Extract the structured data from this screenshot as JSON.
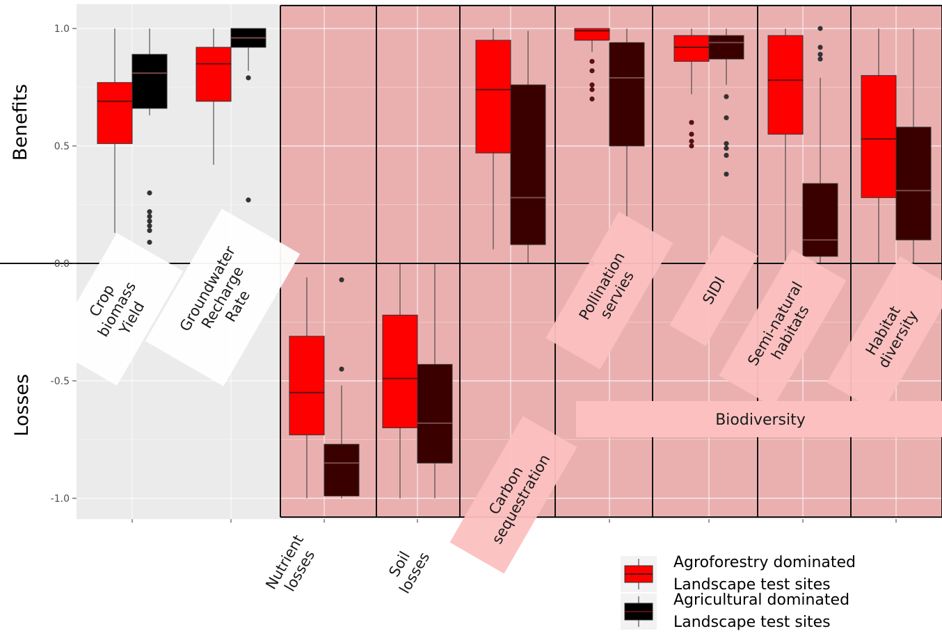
{
  "chart_data": {
    "type": "box",
    "xlabel": "",
    "ylabel_top": "Benefits",
    "ylabel_bottom": "Losses",
    "ylim": [
      -1.1,
      1.1
    ],
    "yticks": [
      -1.0,
      -0.5,
      0.0,
      0.5,
      1.0
    ],
    "ytick_labels": [
      "-1.0",
      "-0.5",
      "0.0",
      "0.5",
      "1.0"
    ],
    "grid": true,
    "highlight_color": "#eab0b0",
    "background_color": "#ebebeb",
    "group_label": "Biodiversity",
    "categories": [
      "Crop biomass Yield",
      "Groundwater Recharge Rate",
      "Nutrient losses",
      "Soil losses",
      "Carbon sequestration",
      "Pollination servies",
      "SIDI",
      "Semi-natural habitats",
      "Habitat diversity"
    ],
    "series": [
      {
        "name": "Agroforestry dominated Landscape test sites",
        "color": "#ff0000",
        "boxes": [
          {
            "min": 0.13,
            "q1": 0.51,
            "median": 0.69,
            "q3": 0.77,
            "max": 1.0,
            "outliers": []
          },
          {
            "min": 0.42,
            "q1": 0.69,
            "median": 0.85,
            "q3": 0.92,
            "max": 1.0,
            "outliers": []
          },
          {
            "min": -1.0,
            "q1": -0.73,
            "median": -0.55,
            "q3": -0.31,
            "max": -0.06,
            "outliers": []
          },
          {
            "min": -1.0,
            "q1": -0.7,
            "median": -0.49,
            "q3": -0.22,
            "max": 0.0,
            "outliers": []
          },
          {
            "min": 0.06,
            "q1": 0.47,
            "median": 0.74,
            "q3": 0.95,
            "max": 1.0,
            "outliers": []
          },
          {
            "min": 0.9,
            "q1": 0.95,
            "median": 0.99,
            "q3": 1.0,
            "max": 1.0,
            "outliers": [
              0.86,
              0.82,
              0.76,
              0.74,
              0.7,
              0.0
            ]
          },
          {
            "min": 0.72,
            "q1": 0.86,
            "median": 0.92,
            "q3": 0.97,
            "max": 1.0,
            "outliers": [
              0.6,
              0.55,
              0.52,
              0.5
            ]
          },
          {
            "min": 0.0,
            "q1": 0.55,
            "median": 0.78,
            "q3": 0.97,
            "max": 1.0,
            "outliers": []
          },
          {
            "min": 0.0,
            "q1": 0.28,
            "median": 0.53,
            "q3": 0.8,
            "max": 1.0,
            "outliers": []
          }
        ]
      },
      {
        "name": "Agricultural dominated Landscape test sites",
        "colors": [
          "#000000",
          "#000000",
          "#3a0000",
          "#3a0000",
          "#3a0000",
          "#3a0000",
          "#3a0000",
          "#3a0000",
          "#3a0000"
        ],
        "boxes": [
          {
            "min": 0.63,
            "q1": 0.66,
            "median": 0.81,
            "q3": 0.89,
            "max": 1.0,
            "outliers": [
              0.3,
              0.22,
              0.2,
              0.18,
              0.16,
              0.14,
              0.09
            ]
          },
          {
            "min": 0.82,
            "q1": 0.92,
            "median": 0.96,
            "q3": 1.0,
            "max": 1.0,
            "outliers": [
              0.79,
              0.27
            ]
          },
          {
            "min": -1.0,
            "q1": -0.99,
            "median": -0.85,
            "q3": -0.77,
            "max": -0.52,
            "outliers": [
              -0.45,
              -0.07
            ]
          },
          {
            "min": -1.0,
            "q1": -0.85,
            "median": -0.68,
            "q3": -0.43,
            "max": 0.0,
            "outliers": []
          },
          {
            "min": 0.0,
            "q1": 0.08,
            "median": 0.28,
            "q3": 0.76,
            "max": 0.99,
            "outliers": []
          },
          {
            "min": 0.2,
            "q1": 0.5,
            "median": 0.79,
            "q3": 0.94,
            "max": 1.0,
            "outliers": []
          },
          {
            "min": 0.76,
            "q1": 0.87,
            "median": 0.94,
            "q3": 0.97,
            "max": 1.0,
            "outliers": [
              0.71,
              0.62,
              0.51,
              0.49,
              0.46,
              0.38
            ]
          },
          {
            "min": 0.0,
            "q1": 0.03,
            "median": 0.1,
            "q3": 0.34,
            "max": 0.79,
            "outliers": [
              1.0,
              0.92,
              0.89,
              0.87
            ]
          },
          {
            "min": 0.0,
            "q1": 0.1,
            "median": 0.31,
            "q3": 0.58,
            "max": 1.0,
            "outliers": []
          }
        ]
      }
    ],
    "legend": {
      "placement": "bottom-right",
      "entries": [
        {
          "line1": "Agroforestry dominated",
          "line2": "Landscape test sites",
          "color": "#ff0000"
        },
        {
          "line1": "Agricultural dominated",
          "line2": "Landscape test sites",
          "color": "#000000"
        }
      ]
    }
  }
}
